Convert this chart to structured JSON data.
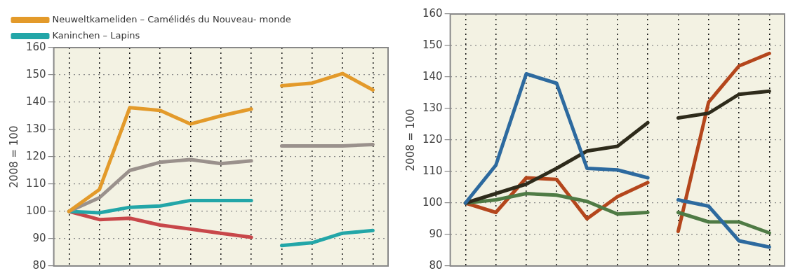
{
  "chart_data": [
    {
      "type": "line",
      "ylabel": "2008 = 100",
      "categories": [
        null,
        null,
        null,
        null,
        null,
        null,
        null,
        null,
        null,
        null,
        null
      ],
      "ylim": [
        80,
        160
      ],
      "yticks": [
        80,
        90,
        100,
        110,
        120,
        130,
        140,
        150,
        160
      ],
      "grid": true,
      "legend": "top",
      "tick_labels": "y",
      "marker": "none",
      "line_style": "solid",
      "series": [
        {
          "name": "Neuweltkameliden – Camélidés du Nouveau- monde",
          "color": "#e39a2a",
          "values": [
            100,
            108,
            138,
            137,
            132,
            135,
            137.5,
            null,
            null,
            null,
            null
          ]
        },
        {
          "color": "#e39a2a",
          "values": [
            null,
            null,
            null,
            null,
            null,
            null,
            null,
            146,
            147,
            150.5,
            144.5
          ]
        },
        {
          "color": "#9a918c",
          "values": [
            100,
            105,
            115,
            118,
            119,
            117.5,
            118.5,
            null,
            null,
            null,
            null
          ]
        },
        {
          "color": "#9a918c",
          "values": [
            null,
            null,
            null,
            null,
            null,
            null,
            null,
            124,
            124,
            124,
            124.5
          ]
        },
        {
          "name": "Kaninchen – Lapins",
          "color": "#22a6a8",
          "values": [
            100,
            99.5,
            101.5,
            102,
            104,
            104,
            104,
            null,
            null,
            null,
            null
          ]
        },
        {
          "color": "#22a6a8",
          "values": [
            null,
            null,
            null,
            null,
            null,
            null,
            null,
            87.5,
            88.5,
            92,
            93
          ]
        },
        {
          "color": "#c8474a",
          "values": [
            100,
            97,
            97.5,
            95,
            93.5,
            92,
            90.5,
            null,
            null,
            null,
            null
          ]
        }
      ]
    },
    {
      "type": "line",
      "ylabel": "2008 = 100",
      "categories": [
        null,
        null,
        null,
        null,
        null,
        null,
        null,
        null,
        null,
        null,
        null
      ],
      "ylim": [
        80,
        160
      ],
      "yticks": [
        80,
        90,
        100,
        110,
        120,
        130,
        140,
        150,
        160
      ],
      "grid": true,
      "tick_labels": "y",
      "marker": "none",
      "line_style": "solid",
      "series": [
        {
          "color": "#2d6a9f",
          "values": [
            100,
            112,
            141,
            138,
            111,
            110.5,
            108,
            null,
            null,
            null,
            null
          ]
        },
        {
          "color": "#2d6a9f",
          "values": [
            null,
            null,
            null,
            null,
            null,
            null,
            null,
            101,
            99,
            88,
            86
          ]
        },
        {
          "color": "#2e2b1b",
          "values": [
            100,
            103,
            106,
            111,
            116.5,
            118,
            125.5,
            null,
            null,
            null,
            null
          ]
        },
        {
          "color": "#2e2b1b",
          "values": [
            null,
            null,
            null,
            null,
            null,
            null,
            null,
            127,
            128.5,
            134.5,
            135.5
          ]
        },
        {
          "color": "#4f7b45",
          "values": [
            100,
            101,
            103,
            102.5,
            100.5,
            96.5,
            97,
            null,
            null,
            null,
            null
          ]
        },
        {
          "color": "#4f7b45",
          "values": [
            null,
            null,
            null,
            null,
            null,
            null,
            null,
            97,
            94,
            94,
            90.5
          ]
        },
        {
          "color": "#b4461c",
          "values": [
            100,
            97,
            108,
            107.5,
            95,
            102,
            106.5,
            null,
            null,
            null,
            null
          ]
        },
        {
          "color": "#b4461c",
          "values": [
            null,
            null,
            null,
            null,
            null,
            null,
            null,
            91,
            132,
            143.5,
            147.5
          ]
        }
      ]
    }
  ]
}
